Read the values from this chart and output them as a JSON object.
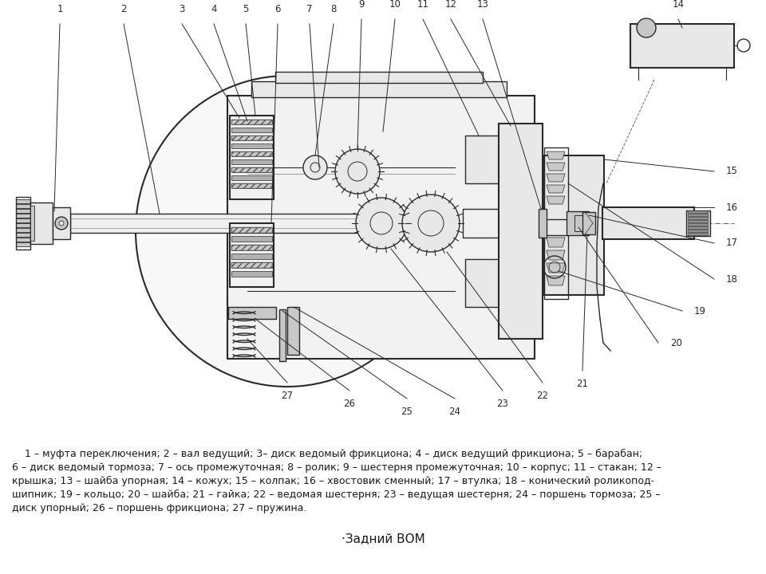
{
  "title": "·Задний ВОМ",
  "background_color": "#ffffff",
  "text_color": "#1a1a1a",
  "desc_line1": "    1 – муфта переключения; 2 – вал ведущий; 3– диск ведомый фрикциона; 4 – диск ведущий фрикциона; 5 – барабан;",
  "desc_line2": "6 – диск ведомый тормоза; 7 – ось промежуточная; 8 – ролик; 9 – шестерня промежуточная; 10 – корпус; 11 – стакан; 12 –",
  "desc_line3": "крышка; 13 – шайба упорная; 14 – кожух; 15 – колпак; 16 – хвостовик сменный; 17 – втулка; 18 – конический роликопод-",
  "desc_line4": "шипник; 19 – кольцо; 20 – шайба; 21 – гайка; 22 – ведомая шестерня; 23 – ведущая шестерня; 24 – поршень тормоза; 25 –",
  "desc_line5": "диск упорный; 26 – поршень фрикциона; 27 – пружина.",
  "figsize": [
    9.6,
    7.2
  ],
  "dpi": 100,
  "line_color": "#2a2a2a",
  "fill_light": "#e8e8e8",
  "fill_mid": "#c8c8c8",
  "fill_dark": "#909090",
  "fill_hatch": "#505050"
}
